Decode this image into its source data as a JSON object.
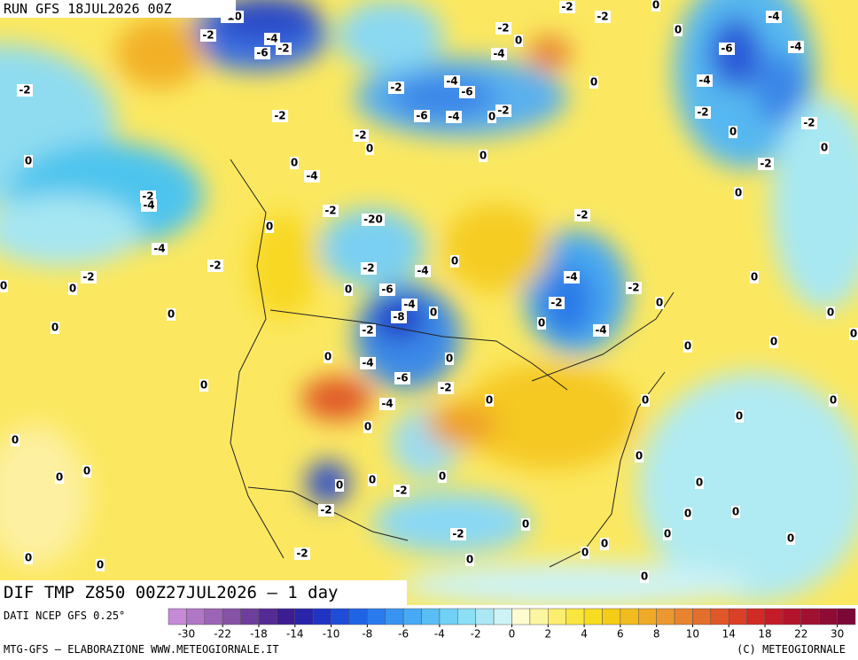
{
  "header": {
    "run": "RUN GFS 18JUL2026 00Z"
  },
  "map": {
    "title": "DIF TMP Z850 00Z27JUL2026 — 1 day",
    "labels": [
      "-10",
      "-2",
      "-2",
      "0",
      "-4",
      "-2",
      "-4",
      "-6",
      "-2",
      "-2",
      "0",
      "0",
      "-6",
      "-4",
      "-2",
      "-4",
      "-4",
      "-2",
      "-6",
      "0",
      "-4",
      "-2",
      "-6",
      "-4",
      "0",
      "-2",
      "-2",
      "-2",
      "-2",
      "0",
      "0",
      "0",
      "0",
      "0",
      "0",
      "-2",
      "-4",
      "0",
      "-2",
      "-4",
      "-2",
      "-20",
      "-2",
      "0",
      "-4",
      "0",
      "-4",
      "-2",
      "-2",
      "-2",
      "-4",
      "0",
      "0",
      "0",
      "0",
      "-6",
      "-2",
      "0",
      "-2",
      "-4",
      "-8",
      "0",
      "0",
      "0",
      "0",
      "0",
      "-2",
      "-4",
      "0",
      "0",
      "0",
      "0",
      "-4",
      "0",
      "-6",
      "0",
      "-2",
      "0",
      "0",
      "0",
      "-4",
      "0",
      "0",
      "0",
      "0",
      "0",
      "0",
      "0",
      "0",
      "0",
      "-2",
      "-2",
      "0",
      "0",
      "0",
      "-2",
      "0",
      "0",
      "0",
      "0",
      "0",
      "-2",
      "0",
      "0",
      "0",
      "0"
    ]
  },
  "legend": {
    "source": "DATI NCEP GFS 0.25°",
    "colors": [
      "#c68ad6",
      "#b077c6",
      "#9c64b6",
      "#8652a6",
      "#6e3e9c",
      "#542a94",
      "#3c1e92",
      "#2a24aa",
      "#2034c4",
      "#1f4cd8",
      "#2064e6",
      "#2a7cee",
      "#3894f2",
      "#48aaf4",
      "#5abef6",
      "#70d0f6",
      "#8ce0f6",
      "#ace8f4",
      "#cdf3f6",
      "#fdfbd0",
      "#fdf6a0",
      "#fcef70",
      "#fbe640",
      "#f8dc20",
      "#f5cc18",
      "#f2bc20",
      "#efaa28",
      "#ec9830",
      "#e88430",
      "#e46e2c",
      "#e05828",
      "#da4026",
      "#d22a24",
      "#c41c28",
      "#b2142c",
      "#a01030",
      "#8e0c34",
      "#7c0838"
    ],
    "ticks": [
      -30,
      -22,
      -18,
      -14,
      -10,
      -8,
      -6,
      -4,
      -2,
      0,
      2,
      4,
      6,
      8,
      10,
      14,
      18,
      22,
      30
    ]
  },
  "footer": {
    "left": "MTG-GFS — ELABORAZIONE WWW.METEOGIORNALE.IT",
    "right": "(C) METEOGIORNALE"
  }
}
